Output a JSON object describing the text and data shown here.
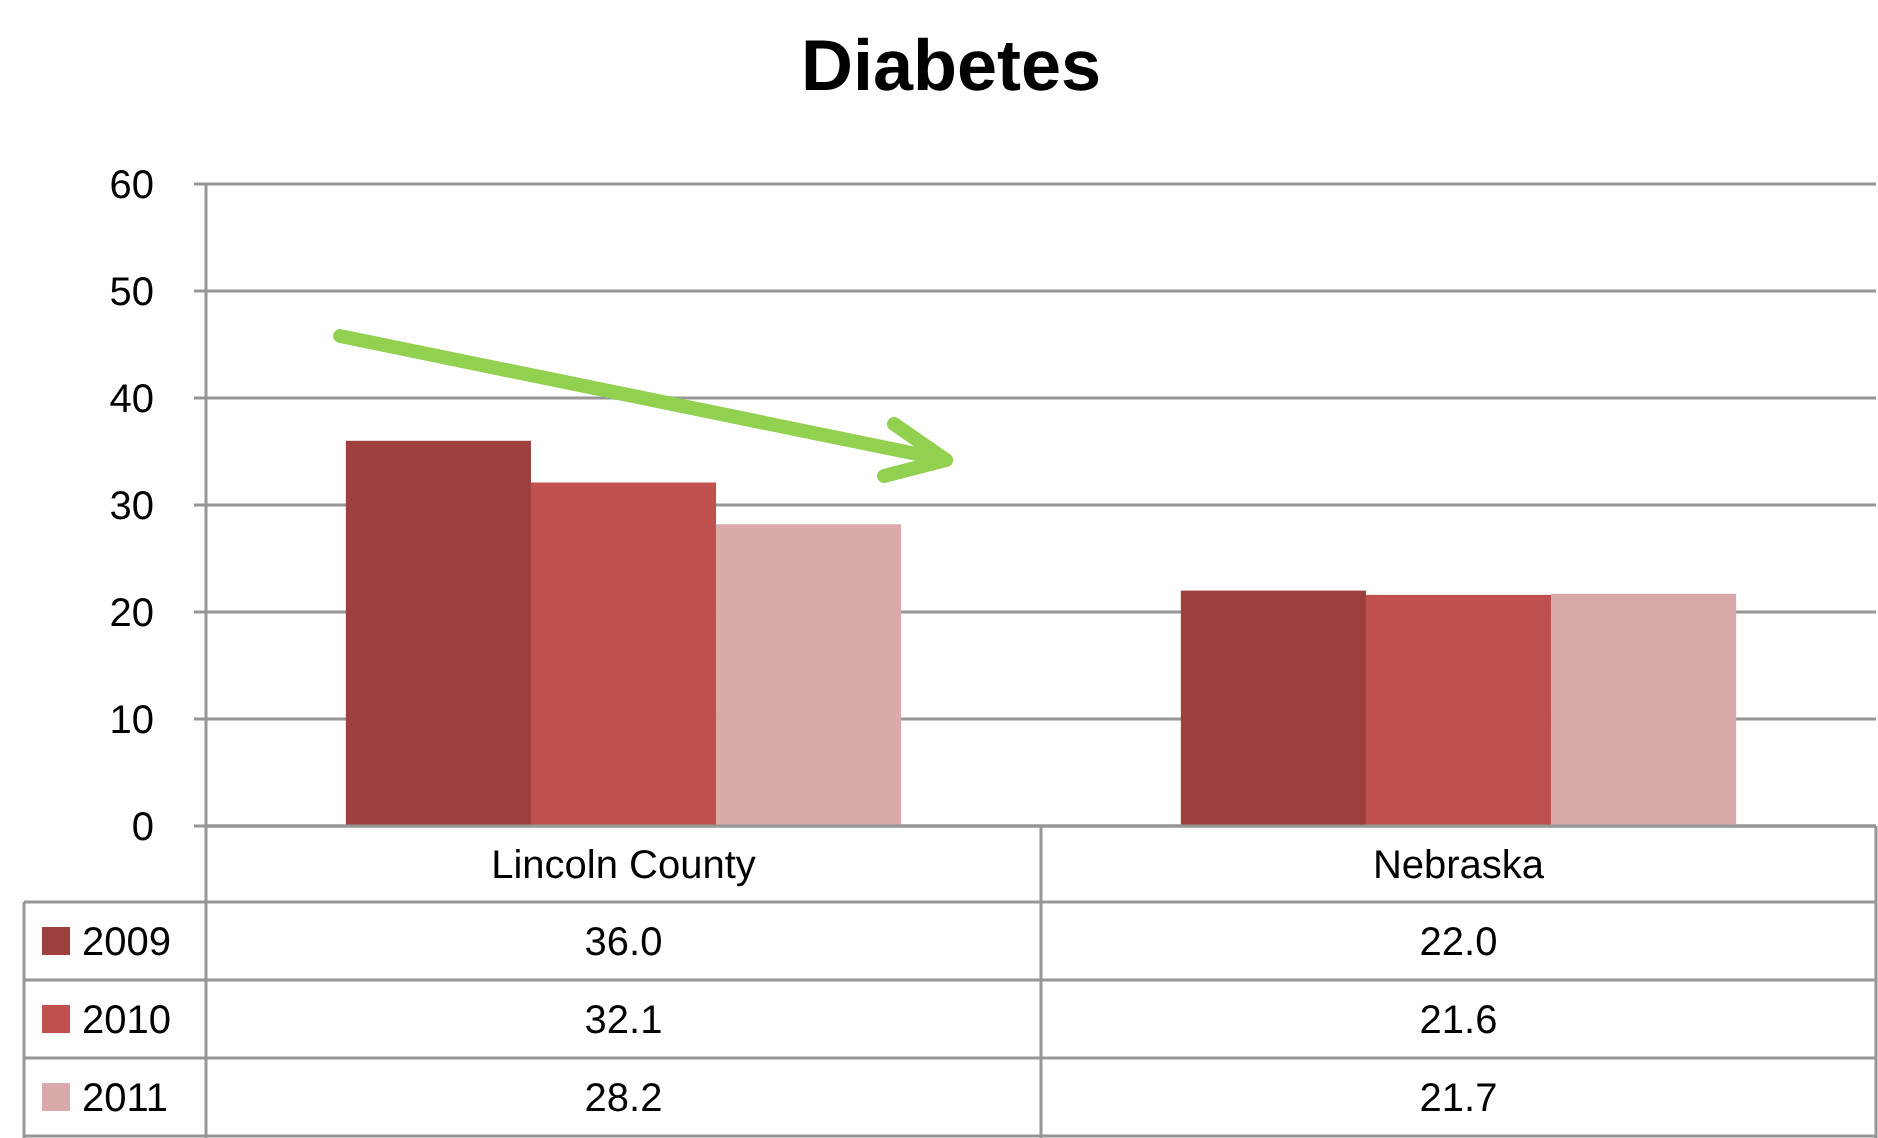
{
  "chart_data": {
    "type": "bar",
    "title": "Diabetes",
    "categories": [
      "Lincoln County",
      "Nebraska"
    ],
    "series": [
      {
        "name": "2009",
        "color": "#9c3f3d",
        "values": [
          36.0,
          22.0
        ],
        "value_labels": [
          "36.0",
          "22.0"
        ]
      },
      {
        "name": "2010",
        "color": "#c0504d",
        "values": [
          32.1,
          21.6
        ],
        "value_labels": [
          "32.1",
          "21.6"
        ]
      },
      {
        "name": "2011",
        "color": "#d9aaa9",
        "values": [
          28.2,
          21.7
        ],
        "value_labels": [
          "28.2",
          "21.7"
        ]
      }
    ],
    "ylim": [
      0,
      60
    ],
    "yticks": [
      0,
      10,
      20,
      30,
      40,
      50,
      60
    ],
    "grid": "y",
    "legend": "bottom left"
  }
}
